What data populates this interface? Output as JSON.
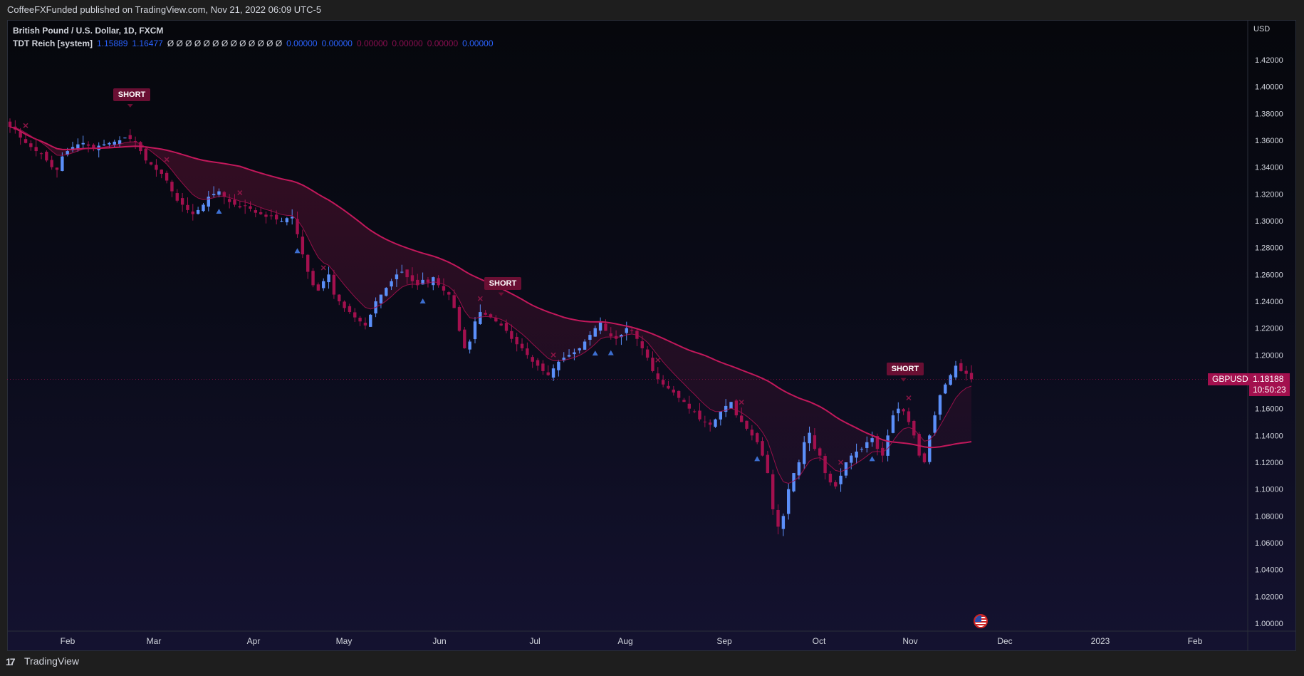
{
  "header": {
    "published_by": "CoffeeFXFunded published on TradingView.com, Nov 21, 2022 06:09 UTC-5"
  },
  "legend": {
    "symbol_line": "British Pound / U.S. Dollar, 1D, FXCM",
    "indicator_name": "TDT Reich [system]",
    "indicator_values": [
      {
        "text": "1.15889",
        "color": "#2962ff"
      },
      {
        "text": "1.16477",
        "color": "#2962ff"
      },
      {
        "text": "Ø Ø Ø Ø Ø Ø Ø Ø Ø Ø Ø Ø Ø",
        "color": "#d1d4dc"
      },
      {
        "text": "0.00000",
        "color": "#2962ff"
      },
      {
        "text": "0.00000",
        "color": "#2962ff"
      },
      {
        "text": "0.00000",
        "color": "#880e4f"
      },
      {
        "text": "0.00000",
        "color": "#880e4f"
      },
      {
        "text": "0.00000",
        "color": "#880e4f"
      },
      {
        "text": "0.00000",
        "color": "#2962ff"
      }
    ]
  },
  "price_axis": {
    "currency": "USD",
    "last_price": "1.18188",
    "countdown": "10:50:23",
    "symbol_tag": "GBPUSD"
  },
  "signals": {
    "labels": [
      "SHORT",
      "SHORT",
      "SHORT"
    ]
  },
  "footer": {
    "brand": "TradingView"
  },
  "colors": {
    "bull": "#5b8ff9",
    "bear": "#a3104e",
    "slow_ma": "#c2185b",
    "fast_ma": "#4a8fe7"
  },
  "chart_data": {
    "type": "candlestick",
    "symbol": "GBPUSD",
    "timeframe": "1D",
    "ylim": [
      0.99,
      1.43
    ],
    "y_ticks": [
      "1.00000",
      "1.02000",
      "1.04000",
      "1.06000",
      "1.08000",
      "1.10000",
      "1.12000",
      "1.14000",
      "1.16000",
      "1.18000",
      "1.20000",
      "1.22000",
      "1.24000",
      "1.26000",
      "1.28000",
      "1.30000",
      "1.32000",
      "1.34000",
      "1.36000",
      "1.38000",
      "1.40000",
      "1.42000"
    ],
    "x_ticks": [
      "Feb",
      "Mar",
      "Apr",
      "May",
      "Jun",
      "Jul",
      "Aug",
      "Sep",
      "Oct",
      "Nov",
      "Dec",
      "2023",
      "Feb"
    ],
    "close_series": [
      1.37,
      1.368,
      1.362,
      1.358,
      1.355,
      1.352,
      1.35,
      1.345,
      1.34,
      1.338,
      1.348,
      1.352,
      1.355,
      1.357,
      1.358,
      1.356,
      1.354,
      1.356,
      1.357,
      1.358,
      1.359,
      1.36,
      1.362,
      1.361,
      1.359,
      1.352,
      1.345,
      1.342,
      1.338,
      1.335,
      1.33,
      1.322,
      1.315,
      1.312,
      1.308,
      1.305,
      1.308,
      1.312,
      1.318,
      1.32,
      1.322,
      1.318,
      1.314,
      1.312,
      1.31,
      1.311,
      1.309,
      1.306,
      1.305,
      1.303,
      1.304,
      1.301,
      1.3,
      1.302,
      1.303,
      1.29,
      1.275,
      1.262,
      1.252,
      1.248,
      1.255,
      1.26,
      1.245,
      1.24,
      1.235,
      1.232,
      1.228,
      1.225,
      1.222,
      1.23,
      1.24,
      1.245,
      1.25,
      1.255,
      1.26,
      1.262,
      1.258,
      1.255,
      1.252,
      1.256,
      1.254,
      1.258,
      1.252,
      1.248,
      1.245,
      1.235,
      1.218,
      1.205,
      1.21,
      1.225,
      1.232,
      1.23,
      1.228,
      1.225,
      1.222,
      1.218,
      1.212,
      1.208,
      1.205,
      1.2,
      1.195,
      1.192,
      1.188,
      1.185,
      1.19,
      1.195,
      1.198,
      1.2,
      1.202,
      1.205,
      1.21,
      1.215,
      1.22,
      1.225,
      1.218,
      1.214,
      1.212,
      1.215,
      1.22,
      1.218,
      1.212,
      1.205,
      1.198,
      1.188,
      1.182,
      1.178,
      1.175,
      1.172,
      1.168,
      1.165,
      1.16,
      1.158,
      1.152,
      1.15,
      1.148,
      1.152,
      1.158,
      1.162,
      1.165,
      1.155,
      1.15,
      1.145,
      1.14,
      1.135,
      1.125,
      1.112,
      1.085,
      1.072,
      1.08,
      1.1,
      1.112,
      1.12,
      1.135,
      1.142,
      1.13,
      1.125,
      1.112,
      1.105,
      1.102,
      1.11,
      1.12,
      1.125,
      1.128,
      1.13,
      1.135,
      1.138,
      1.13,
      1.125,
      1.14,
      1.155,
      1.16,
      1.158,
      1.15,
      1.14,
      1.125,
      1.12,
      1.14,
      1.155,
      1.17,
      1.178,
      1.185,
      1.192,
      1.188,
      1.186,
      1.182
    ],
    "current_price": 1.18188
  }
}
